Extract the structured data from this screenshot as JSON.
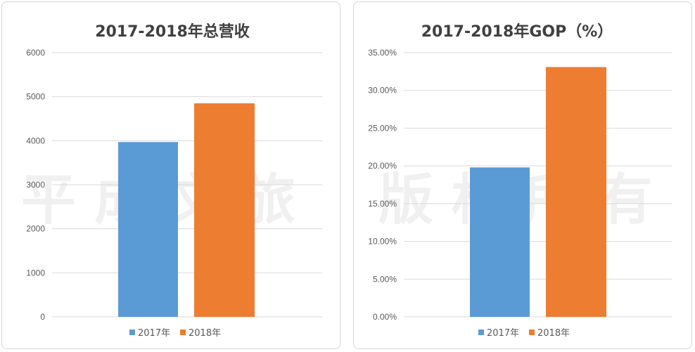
{
  "watermark": {
    "left": "平成文旅",
    "right": "版权所有"
  },
  "colors": {
    "series_2017": "#5b9bd5",
    "series_2018": "#ed7d31",
    "grid": "#d9d9d9",
    "text": "#595959",
    "title": "#404040"
  },
  "chart_data": [
    {
      "type": "bar",
      "title": "2017-2018年总营收",
      "categories": [
        "2017年",
        "2018年"
      ],
      "values": [
        3970,
        4850
      ],
      "series": [
        {
          "name": "2017年",
          "values": [
            3970,
            null
          ]
        },
        {
          "name": "2018年",
          "values": [
            null,
            4850
          ]
        }
      ],
      "ylim": [
        0,
        6000
      ],
      "yticks": [
        0,
        1000,
        2000,
        3000,
        4000,
        5000,
        6000
      ],
      "ytick_labels": [
        "0",
        "1000",
        "2000",
        "3000",
        "4000",
        "5000",
        "6000"
      ],
      "grid": true,
      "legend": "bottom"
    },
    {
      "type": "bar",
      "title": "2017-2018年GOP（%）",
      "categories": [
        "2017年",
        "2018年"
      ],
      "values": [
        19.8,
        33.1
      ],
      "series": [
        {
          "name": "2017年",
          "values": [
            19.8,
            null
          ]
        },
        {
          "name": "2018年",
          "values": [
            null,
            33.1
          ]
        }
      ],
      "ylim": [
        0,
        35
      ],
      "yticks": [
        0,
        5,
        10,
        15,
        20,
        25,
        30,
        35
      ],
      "ytick_labels": [
        "0.00%",
        "5.00%",
        "10.00%",
        "15.00%",
        "20.00%",
        "25.00%",
        "30.00%",
        "35.00%"
      ],
      "grid": true,
      "legend": "bottom"
    }
  ]
}
